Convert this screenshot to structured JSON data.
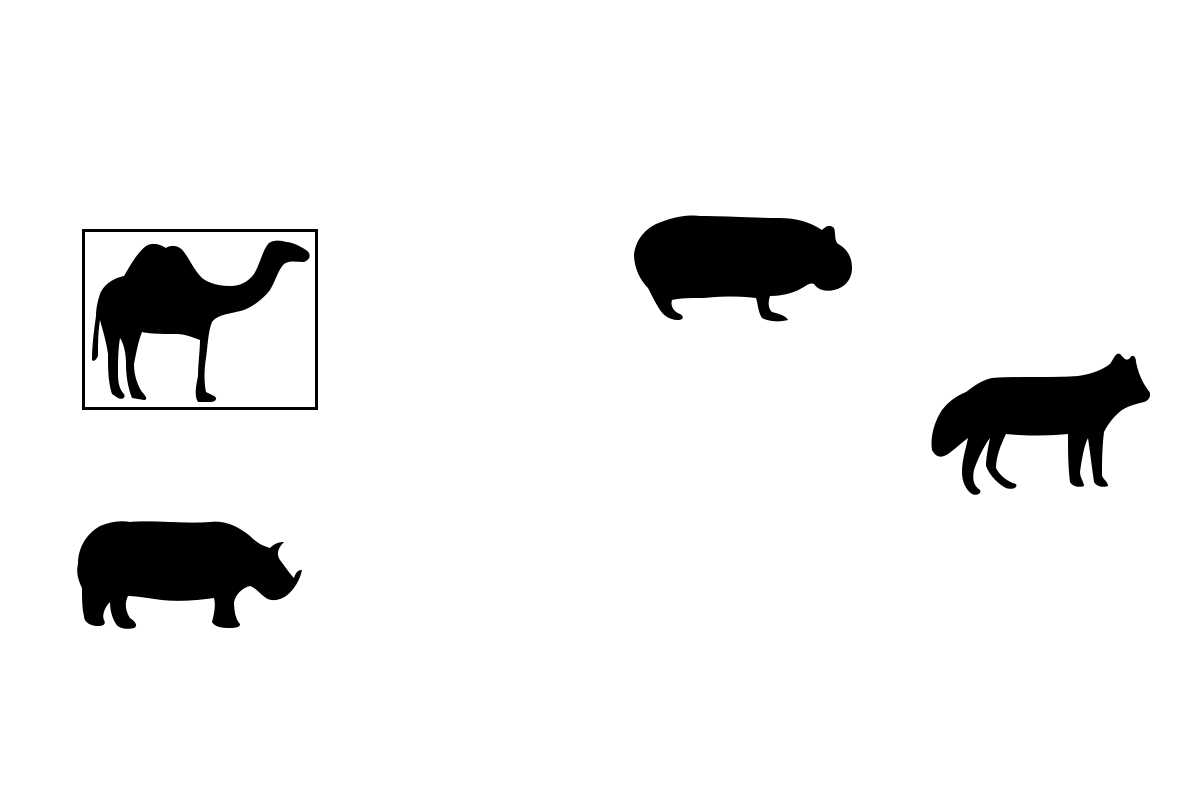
{
  "colors": {
    "silhouette": "#000000",
    "background": "#ffffff",
    "selection_border": "#000000"
  },
  "animals": [
    {
      "id": "camel",
      "icon": "camel-icon",
      "selected": true
    },
    {
      "id": "hippo",
      "icon": "hippo-icon",
      "selected": false
    },
    {
      "id": "wolf",
      "icon": "wolf-icon",
      "selected": false
    },
    {
      "id": "rhino",
      "icon": "rhino-icon",
      "selected": false
    }
  ]
}
